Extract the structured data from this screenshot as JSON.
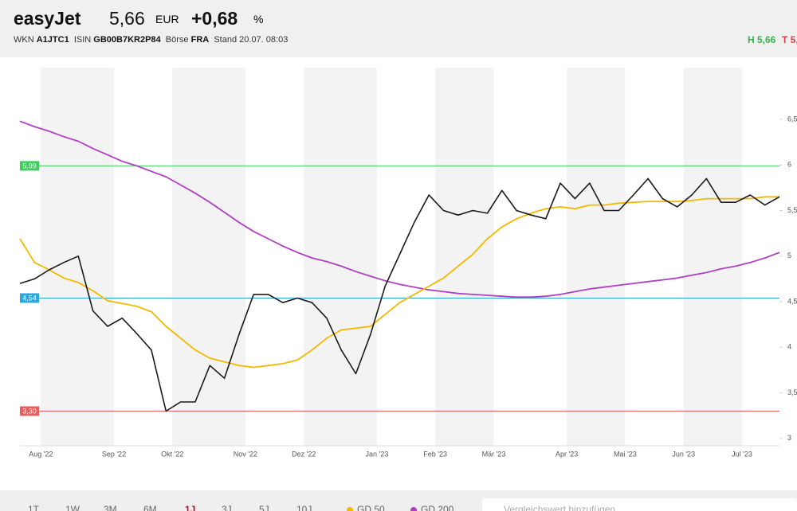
{
  "header": {
    "name": "easyJet",
    "price": "5,66",
    "currency": "EUR",
    "change": "+0,68",
    "change_unit": "%",
    "wkn_label": "WKN",
    "wkn": "A1JTC1",
    "isin_label": "ISIN",
    "isin": "GB00B7KR2P84",
    "exchange_label": "Börse",
    "exchange": "FRA",
    "stand": "Stand 20.07. 08:03",
    "high": "H 5,66",
    "low": "T 5,"
  },
  "chart_data": {
    "type": "line",
    "categories": [
      null,
      "Aug '22",
      null,
      null,
      null,
      null,
      "Sep '22",
      null,
      null,
      null,
      "Okt '22",
      null,
      null,
      null,
      null,
      "Nov '22",
      null,
      null,
      null,
      "Dez '22",
      null,
      null,
      null,
      null,
      "Jan '23",
      null,
      null,
      null,
      "Feb '23",
      null,
      null,
      null,
      "Mär '23",
      null,
      null,
      null,
      null,
      "Apr '23",
      null,
      null,
      null,
      "Mai '23",
      null,
      null,
      null,
      "Jun '23",
      null,
      null,
      null,
      "Jul '23",
      null,
      null,
      null
    ],
    "series": [
      {
        "color": "#1a1a1a",
        "values": [
          4.7,
          4.75,
          4.85,
          4.93,
          5.0,
          4.4,
          4.23,
          4.32,
          4.15,
          3.97,
          3.3,
          3.4,
          3.4,
          3.8,
          3.66,
          4.14,
          4.58,
          4.58,
          4.49,
          4.54,
          4.49,
          4.32,
          3.97,
          3.71,
          4.14,
          4.67,
          5.02,
          5.37,
          5.67,
          5.5,
          5.45,
          5.5,
          5.47,
          5.72,
          5.5,
          5.45,
          5.41,
          5.8,
          5.63,
          5.8,
          5.5,
          5.5,
          5.67,
          5.85,
          5.63,
          5.54,
          5.67,
          5.85,
          5.59,
          5.59,
          5.67,
          5.56,
          5.65
        ]
      },
      {
        "name": "GD 50",
        "color": "#f5b800",
        "values": [
          5.19,
          4.93,
          4.85,
          4.76,
          4.71,
          4.62,
          4.51,
          4.48,
          4.45,
          4.39,
          4.23,
          4.1,
          3.97,
          3.88,
          3.84,
          3.8,
          3.78,
          3.8,
          3.82,
          3.86,
          3.97,
          4.1,
          4.19,
          4.21,
          4.23,
          4.36,
          4.49,
          4.58,
          4.67,
          4.76,
          4.89,
          5.02,
          5.19,
          5.32,
          5.41,
          5.47,
          5.52,
          5.54,
          5.52,
          5.56,
          5.56,
          5.58,
          5.59,
          5.6,
          5.6,
          5.6,
          5.61,
          5.63,
          5.63,
          5.63,
          5.63,
          5.65,
          5.65
        ]
      },
      {
        "name": "GD 200",
        "color": "#b03fc4",
        "values": [
          6.48,
          6.42,
          6.37,
          6.31,
          6.26,
          6.18,
          6.11,
          6.04,
          5.99,
          5.93,
          5.87,
          5.78,
          5.69,
          5.59,
          5.48,
          5.37,
          5.27,
          5.19,
          5.11,
          5.04,
          4.98,
          4.94,
          4.89,
          4.83,
          4.78,
          4.73,
          4.69,
          4.66,
          4.63,
          4.61,
          4.59,
          4.58,
          4.57,
          4.56,
          4.55,
          4.55,
          4.56,
          4.58,
          4.61,
          4.64,
          4.66,
          4.68,
          4.7,
          4.72,
          4.74,
          4.76,
          4.79,
          4.82,
          4.86,
          4.89,
          4.93,
          4.98,
          5.04
        ]
      }
    ],
    "levels": {
      "values": [
        5.99,
        4.54,
        3.3
      ],
      "value_labels": [
        "5,99",
        "4,54",
        "3,30"
      ],
      "colors": [
        "#3ccf5a",
        "#29a8e0",
        "#f05a5a"
      ]
    },
    "ylim": [
      2.92,
      6.98
    ],
    "yticks": [
      {
        "value": 6.5,
        "label": "6,5"
      },
      6,
      {
        "value": 5.5,
        "label": "5,5"
      },
      5,
      {
        "value": 4.5,
        "label": "4,5"
      },
      4,
      {
        "value": 3.5,
        "label": "3,5"
      },
      3
    ],
    "grid": false
  },
  "toolbar": {
    "ranges": [
      "1T",
      "1W",
      "3M",
      "6M",
      "1J",
      "3J",
      "5J",
      "10J"
    ],
    "active": "1J",
    "search_placeholder": "Vergleichswert hinzufügen"
  }
}
